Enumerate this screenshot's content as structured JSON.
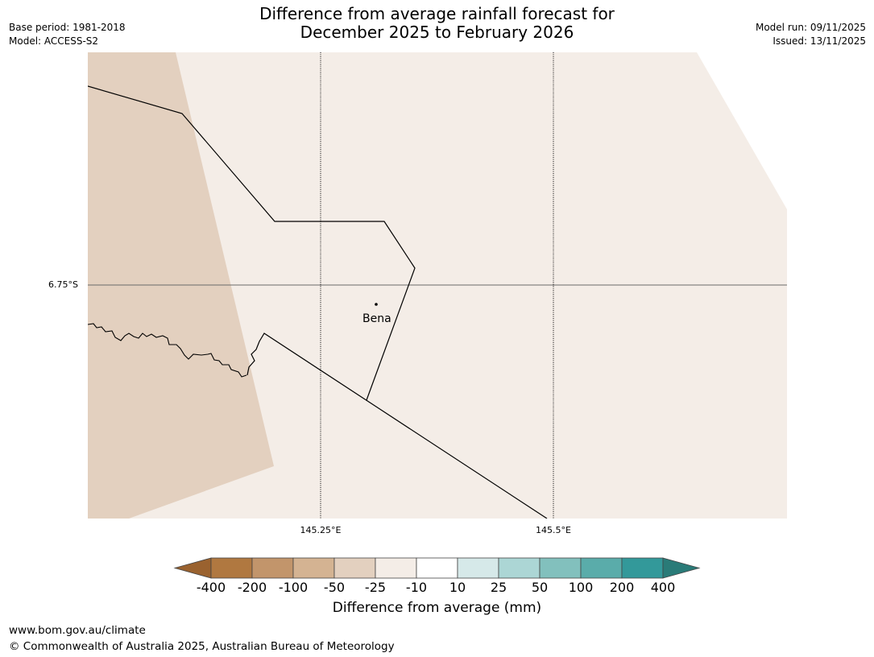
{
  "title": {
    "line1": "Difference from average rainfall forecast for",
    "line2": "December 2025 to February 2026"
  },
  "meta_left": {
    "base_period": "Base period: 1981-2018",
    "model": "Model: ACCESS-S2"
  },
  "meta_right": {
    "model_run": "Model run: 09/11/2025",
    "issued": "Issued: 13/11/2025"
  },
  "map": {
    "lat_labels": [
      "6.75°S"
    ],
    "lon_labels": [
      "145.25°E",
      "145.5°E"
    ],
    "places": [
      {
        "name": "Bena"
      }
    ],
    "fill_colors": {
      "minus_50_to_25": "#e3d0bf",
      "minus_25_to_10": "#f4ede7",
      "outline": "#000000"
    }
  },
  "colorbar": {
    "ticks": [
      "-400",
      "-200",
      "-100",
      "-50",
      "-25",
      "-10",
      "10",
      "25",
      "50",
      "100",
      "200",
      "400"
    ],
    "colors": [
      "#9a622f",
      "#b07840",
      "#c2956b",
      "#d4b392",
      "#e3d0bf",
      "#f4ede7",
      "#ffffff",
      "#d6e9e9",
      "#acd6d5",
      "#82c0bd",
      "#5aacaa",
      "#33999a",
      "#2a7b78"
    ],
    "label": "Difference from average (mm)"
  },
  "footer": {
    "url": "www.bom.gov.au/climate",
    "copyright": "© Commonwealth of Australia 2025, Australian Bureau of Meteorology"
  }
}
